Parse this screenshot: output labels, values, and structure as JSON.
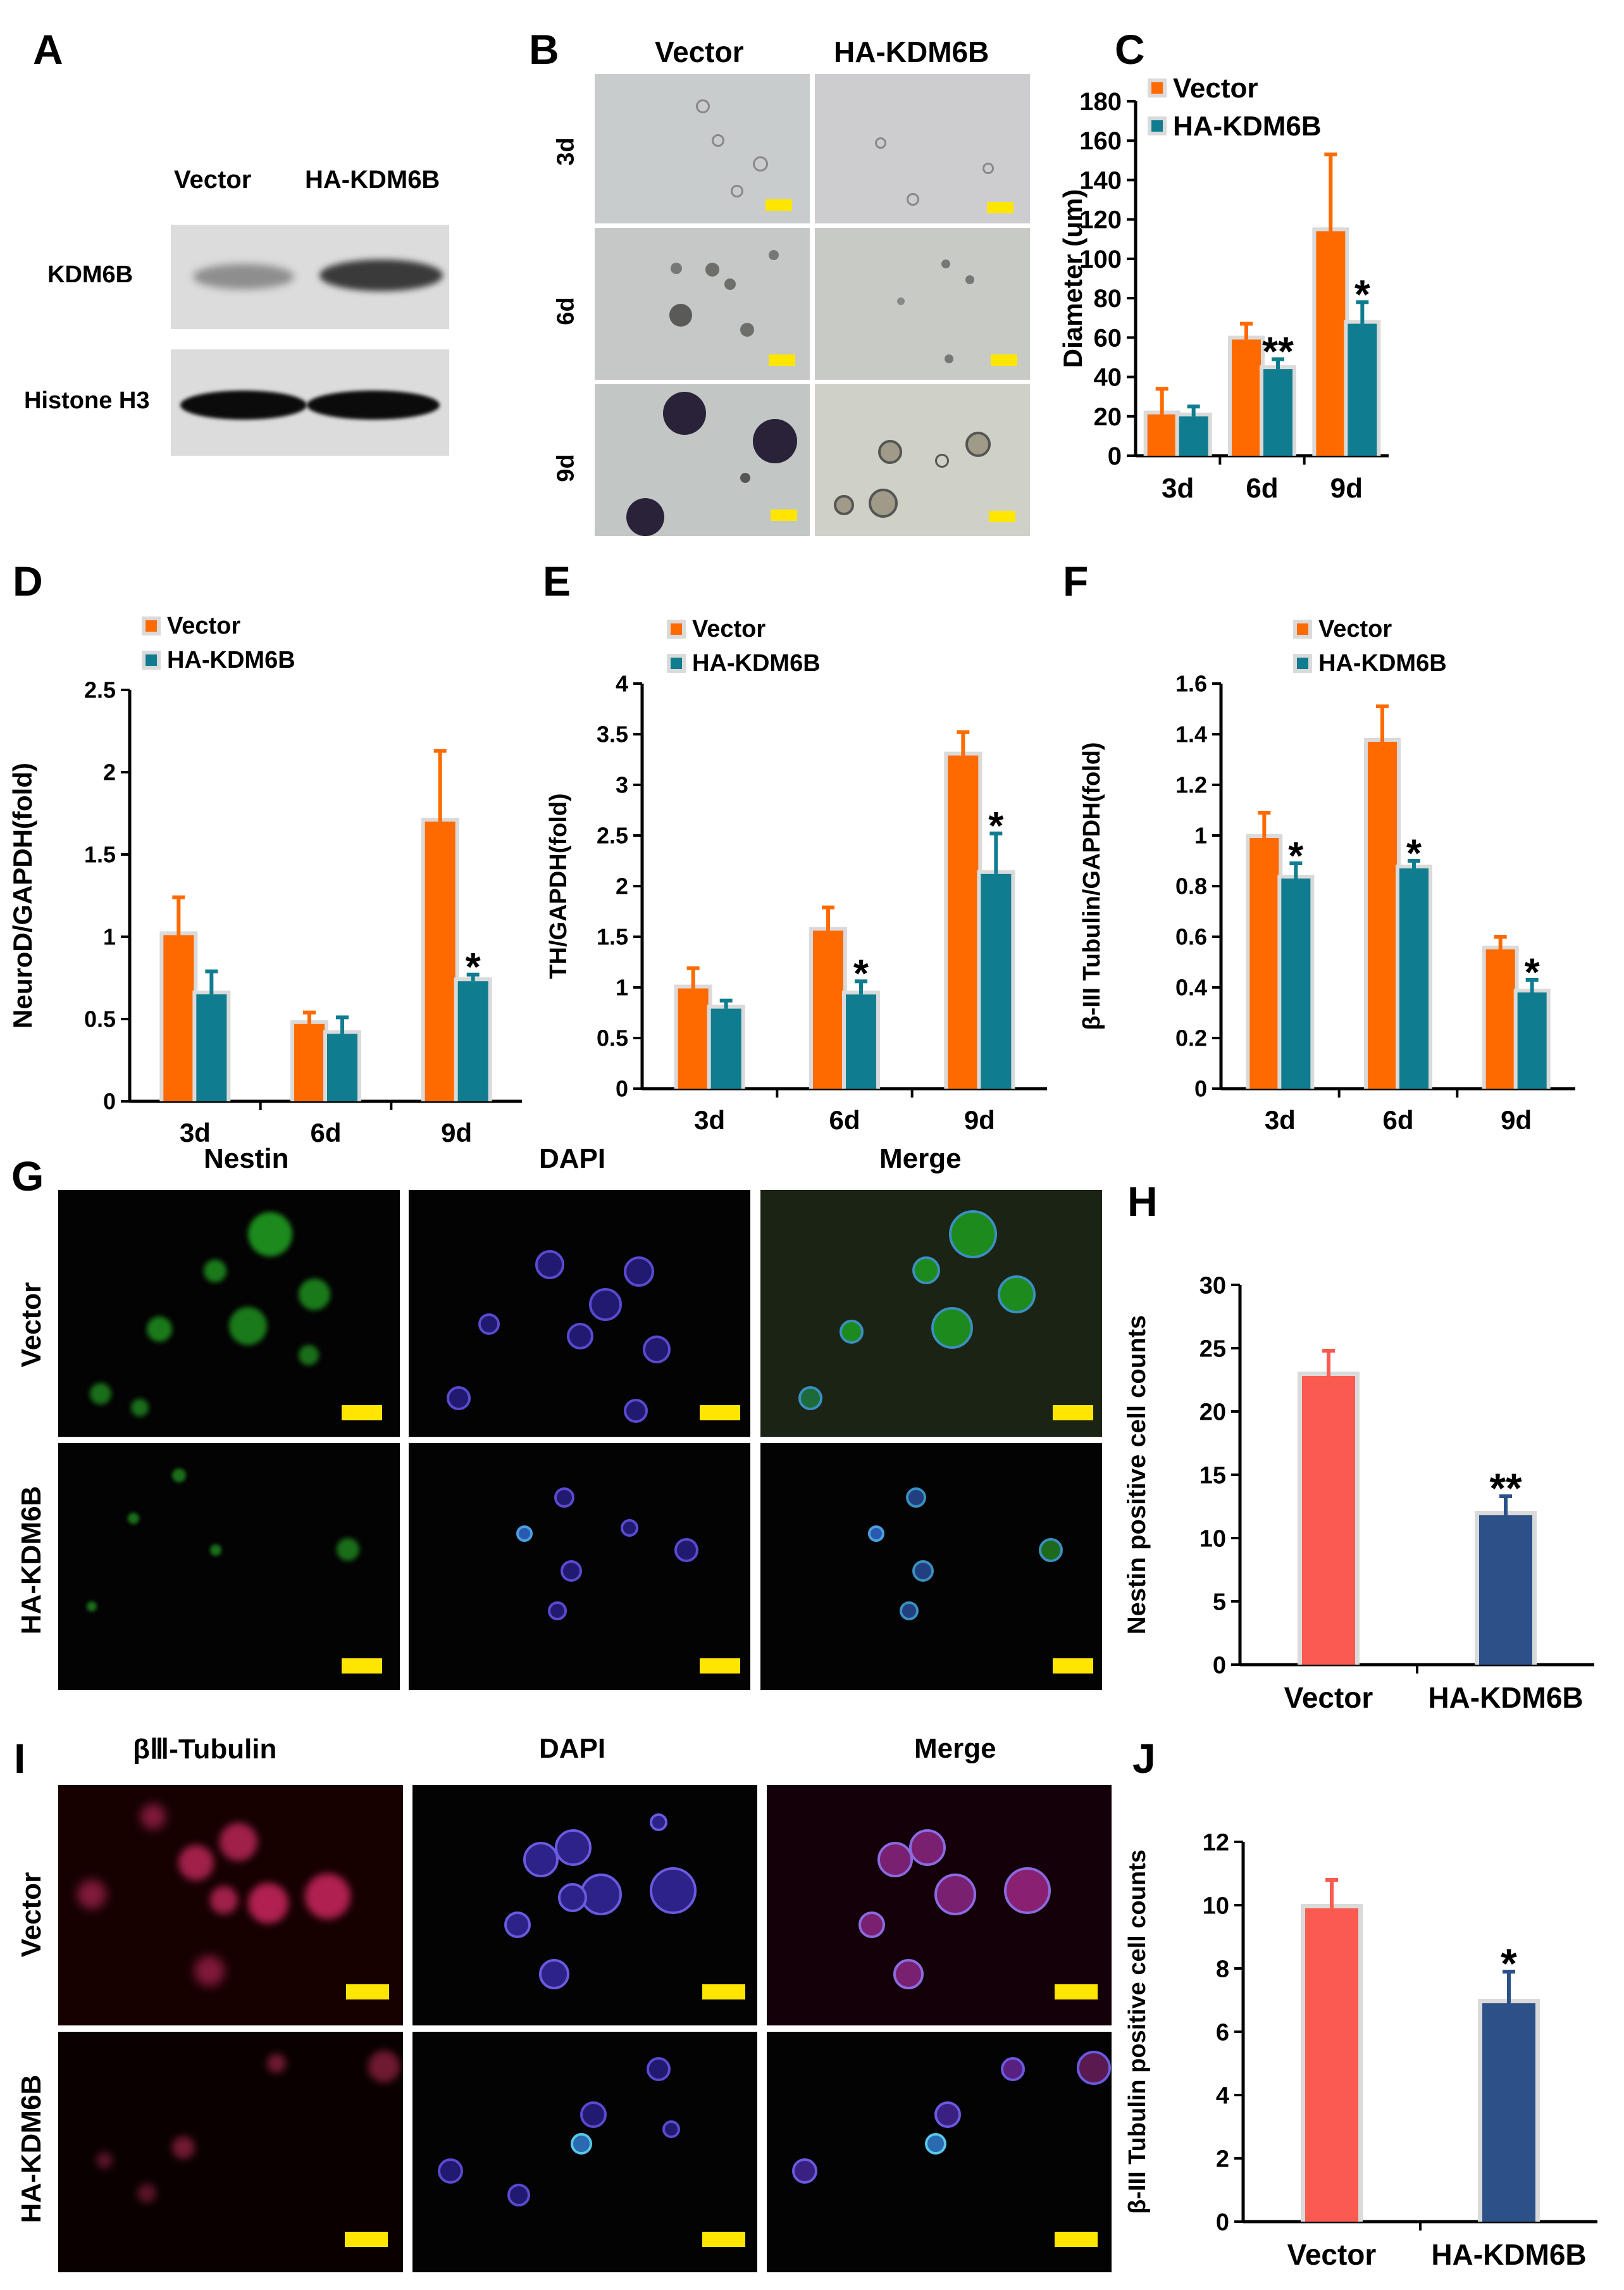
{
  "panels": {
    "A": {
      "label": "A",
      "col_labels": [
        "Vector",
        "HA-KDM6B"
      ],
      "row_labels": [
        "KDM6B",
        "Histone H3"
      ]
    },
    "B": {
      "label": "B",
      "col_labels": [
        "Vector",
        "HA-KDM6B"
      ],
      "row_labels": [
        "3d",
        "6d",
        "9d"
      ]
    },
    "C": {
      "label": "C"
    },
    "D": {
      "label": "D"
    },
    "E": {
      "label": "E"
    },
    "F": {
      "label": "F"
    },
    "G": {
      "label": "G",
      "col_labels": [
        "Nestin",
        "DAPI",
        "Merge"
      ],
      "row_labels": [
        "Vector",
        "HA-KDM6B"
      ]
    },
    "H": {
      "label": "H"
    },
    "I": {
      "label": "I",
      "col_labels": [
        "βⅢ-Tubulin",
        "DAPI",
        "Merge"
      ],
      "row_labels": [
        "Vector",
        "HA-KDM6B"
      ]
    },
    "J": {
      "label": "J"
    }
  },
  "colors": {
    "vector": "#ff6a00",
    "ha_kdm6b": "#0f7d8f",
    "vector_count": "#fa5a50",
    "ha_kdm6b_count": "#2b5188",
    "bar_halo": "#dadada",
    "scale_bar": "#ffe600"
  },
  "chart_data": [
    {
      "panel": "C",
      "type": "bar",
      "categories": [
        "3d",
        "6d",
        "9d"
      ],
      "series": [
        {
          "name": "Vector",
          "values": [
            21,
            59,
            114
          ],
          "errors": [
            13,
            8,
            39
          ]
        },
        {
          "name": "HA-KDM6B",
          "values": [
            20,
            44,
            67
          ],
          "errors": [
            5,
            5,
            11
          ]
        }
      ],
      "significance": [
        "",
        "**",
        "*"
      ],
      "ylabel": "Diameter (um)",
      "ylim": [
        0,
        180
      ],
      "yticks": [
        0,
        20,
        40,
        60,
        80,
        100,
        120,
        140,
        160,
        180
      ],
      "legend": "top-left"
    },
    {
      "panel": "D",
      "type": "bar",
      "categories": [
        "3d",
        "6d",
        "9d"
      ],
      "series": [
        {
          "name": "Vector",
          "values": [
            1.01,
            0.47,
            1.7
          ],
          "errors": [
            0.23,
            0.07,
            0.43
          ]
        },
        {
          "name": "HA-KDM6B",
          "values": [
            0.65,
            0.41,
            0.73
          ],
          "errors": [
            0.14,
            0.1,
            0.04
          ]
        }
      ],
      "significance": [
        "",
        "",
        "*"
      ],
      "ylabel": "NeuroD/GAPDH(fold)",
      "ylim": [
        0,
        2.5
      ],
      "yticks": [
        0,
        0.5,
        1,
        1.5,
        2,
        2.5
      ],
      "legend": "top-left"
    },
    {
      "panel": "E",
      "type": "bar",
      "categories": [
        "3d",
        "6d",
        "9d"
      ],
      "series": [
        {
          "name": "Vector",
          "values": [
            0.99,
            1.56,
            3.29
          ],
          "errors": [
            0.2,
            0.23,
            0.23
          ]
        },
        {
          "name": "HA-KDM6B",
          "values": [
            0.79,
            0.93,
            2.12
          ],
          "errors": [
            0.08,
            0.13,
            0.4
          ]
        }
      ],
      "significance": [
        "",
        "*",
        "*"
      ],
      "ylabel": "TH/GAPDH(fold)",
      "ylim": [
        0,
        4
      ],
      "yticks": [
        0,
        0.5,
        1,
        1.5,
        2,
        2.5,
        3,
        3.5,
        4
      ],
      "legend": "top-left"
    },
    {
      "panel": "F",
      "type": "bar",
      "categories": [
        "3d",
        "6d",
        "9d"
      ],
      "series": [
        {
          "name": "Vector",
          "values": [
            0.99,
            1.37,
            0.55
          ],
          "errors": [
            0.1,
            0.14,
            0.05
          ]
        },
        {
          "name": "HA-KDM6B",
          "values": [
            0.83,
            0.87,
            0.38
          ],
          "errors": [
            0.06,
            0.03,
            0.05
          ]
        }
      ],
      "significance": [
        "*",
        "*",
        "*"
      ],
      "ylabel": "β-III Tubulin/GAPDH(fold)",
      "ylim": [
        0,
        1.6
      ],
      "yticks": [
        0,
        0.2,
        0.4,
        0.6,
        0.8,
        1,
        1.2,
        1.4,
        1.6
      ],
      "legend": "top-right"
    },
    {
      "panel": "H",
      "type": "bar",
      "categories": [
        "Vector",
        "HA-KDM6B"
      ],
      "series": [
        {
          "values": [
            22.8,
            11.8
          ],
          "errors": [
            2.0,
            1.5
          ]
        }
      ],
      "significance": [
        "",
        "**"
      ],
      "ylabel": "Nestin positive cell counts",
      "ylim": [
        0,
        30
      ],
      "yticks": [
        0,
        5,
        10,
        15,
        20,
        25,
        30
      ]
    },
    {
      "panel": "J",
      "type": "bar",
      "categories": [
        "Vector",
        "HA-KDM6B"
      ],
      "series": [
        {
          "values": [
            9.9,
            6.9
          ],
          "errors": [
            0.9,
            1.0
          ]
        }
      ],
      "significance": [
        "",
        "*"
      ],
      "ylabel": "β-III Tubulin positive cell counts",
      "ylim": [
        0,
        12
      ],
      "yticks": [
        0,
        2,
        4,
        6,
        8,
        10,
        12
      ]
    }
  ]
}
